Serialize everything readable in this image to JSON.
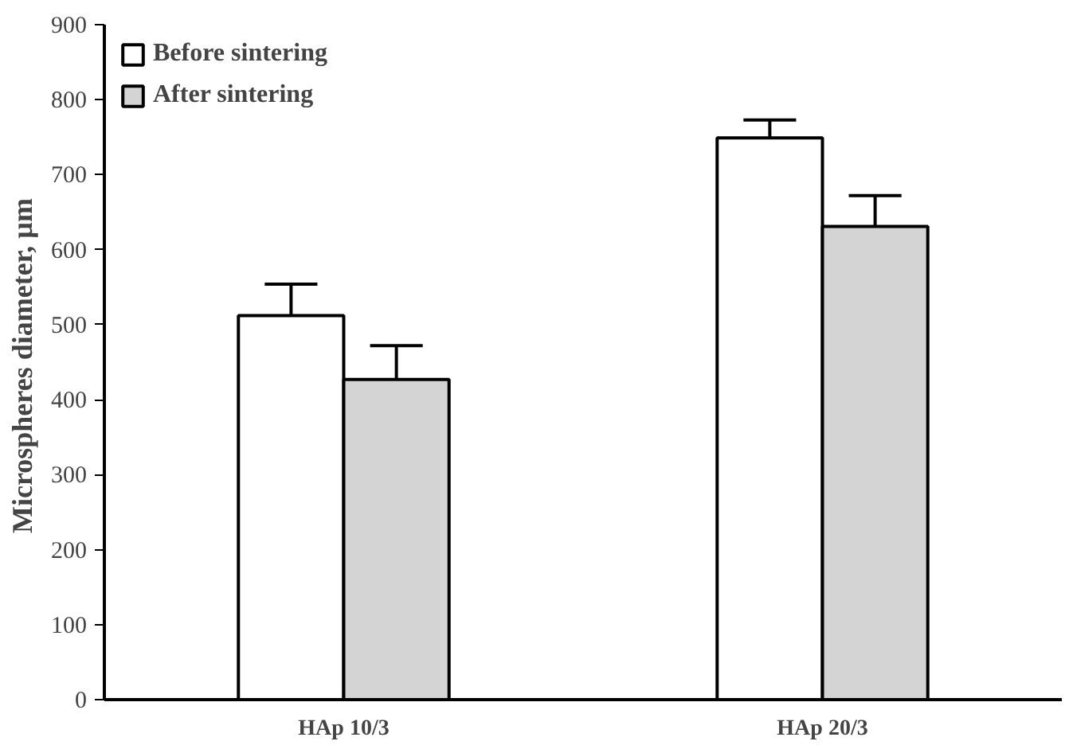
{
  "chart_data": {
    "type": "bar",
    "ylabel": "Microspheres diameter,  µm",
    "categories": [
      "HAp 10/3",
      "HAp 20/3"
    ],
    "series": [
      {
        "name": "Before sintering",
        "color": "#ffffff",
        "values": [
          512,
          749
        ],
        "errors": [
          [
            512,
            554
          ],
          [
            749,
            773
          ]
        ]
      },
      {
        "name": "After sintering",
        "color": "#d4d4d4",
        "values": [
          427,
          631
        ],
        "errors": [
          [
            427,
            472
          ],
          [
            631,
            672
          ]
        ]
      }
    ],
    "ylim": [
      0,
      900
    ],
    "yticks": [
      0,
      100,
      200,
      300,
      400,
      500,
      600,
      700,
      800,
      900
    ],
    "grid": false,
    "legend": "top left"
  }
}
